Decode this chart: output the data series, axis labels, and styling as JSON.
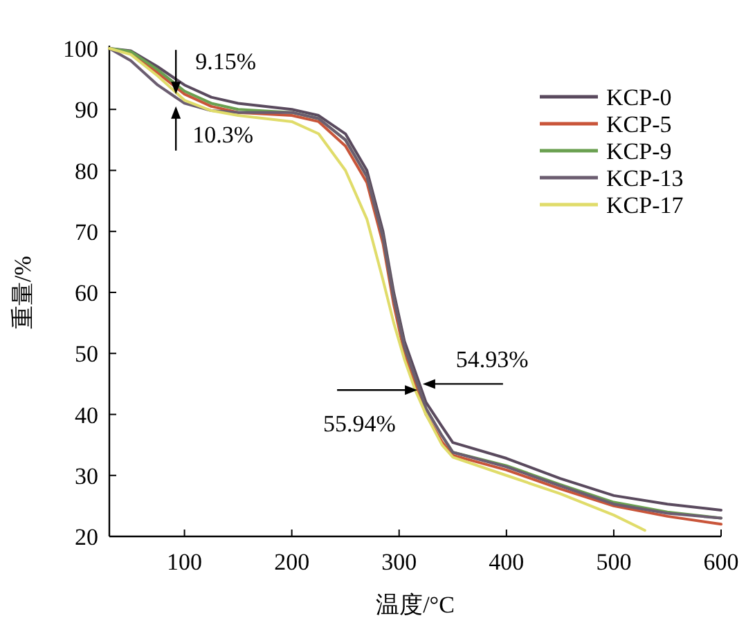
{
  "chart_data": {
    "type": "line",
    "xlabel": "温度/°C",
    "ylabel": "重量/%",
    "xlim": [
      30,
      600
    ],
    "ylim": [
      20,
      100
    ],
    "xticks": [
      100,
      200,
      300,
      400,
      500,
      600
    ],
    "yticks": [
      20,
      30,
      40,
      50,
      60,
      70,
      80,
      90,
      100
    ],
    "grid": false,
    "legend": "top right",
    "marker": "none",
    "line_style": "solid",
    "x": [
      30,
      50,
      75,
      100,
      125,
      150,
      200,
      225,
      250,
      270,
      285,
      295,
      305,
      315,
      325,
      340,
      350,
      400,
      450,
      500,
      550,
      600
    ],
    "series": [
      {
        "name": "KCP-0",
        "color": "#5a4a5e",
        "values": [
          100,
          99.6,
          97,
          94,
          92,
          91,
          90,
          89,
          86,
          80,
          70,
          60,
          52,
          47,
          42,
          38,
          35.4,
          32.8,
          29.5,
          26.7,
          25.3,
          24.3
        ]
      },
      {
        "name": "KCP-5",
        "color": "#c9553a",
        "values": [
          100,
          99.3,
          96,
          92.5,
          90.5,
          89.5,
          89,
          88,
          84,
          78,
          68,
          58,
          50,
          45,
          40,
          35.5,
          33.3,
          30.9,
          27.8,
          25,
          23.3,
          22
        ]
      },
      {
        "name": "KCP-9",
        "color": "#6aa050",
        "values": [
          100,
          99.5,
          96.5,
          93,
          91,
          90,
          89.5,
          88.5,
          85,
          79,
          69,
          59,
          51,
          46,
          41,
          36.5,
          33.8,
          31.6,
          28.5,
          25.6,
          24,
          23
        ]
      },
      {
        "name": "KCP-13",
        "color": "#6b5d70",
        "values": [
          100,
          98,
          94,
          91,
          89.8,
          89.5,
          89.5,
          88.5,
          85,
          79,
          69,
          59,
          51,
          46,
          41,
          36.5,
          33.8,
          31.4,
          28.3,
          25.3,
          23.8,
          23
        ]
      },
      {
        "name": "KCP-17",
        "color": "#e0dc6a",
        "x": [
          30,
          50,
          75,
          100,
          125,
          150,
          200,
          225,
          250,
          270,
          285,
          295,
          305,
          315,
          325,
          340,
          350,
          400,
          450,
          500,
          529
        ],
        "values": [
          100,
          99,
          95.5,
          91.5,
          89.8,
          89,
          88,
          86,
          80,
          72,
          62,
          55,
          49,
          44,
          40,
          35,
          33,
          30,
          27,
          23.5,
          21
        ]
      }
    ],
    "annotations": [
      {
        "text": "9.15%",
        "x": 92,
        "y": 92.5
      },
      {
        "text": "10.3%",
        "x": 92,
        "y": 90.5
      },
      {
        "text": "54.93%",
        "x": 322,
        "y": 45
      },
      {
        "text": "55.94%",
        "x": 317,
        "y": 44
      }
    ]
  }
}
